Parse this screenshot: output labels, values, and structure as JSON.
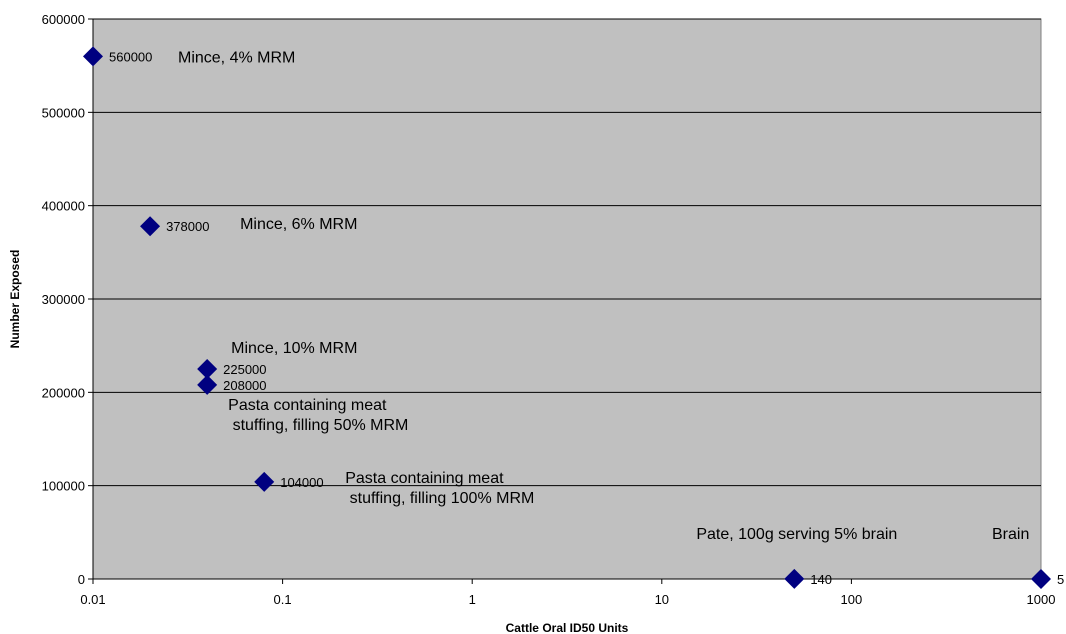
{
  "chart_data": {
    "type": "scatter",
    "title": "",
    "xlabel": "Cattle Oral ID50 Units",
    "ylabel": "Number Exposed",
    "x_scale": "log",
    "xlim": [
      0.01,
      1000
    ],
    "ylim": [
      0,
      600000
    ],
    "x_ticks": [
      "0.01",
      "0.1",
      "1",
      "10",
      "100",
      "1000"
    ],
    "y_ticks": [
      "0",
      "100000",
      "200000",
      "300000",
      "400000",
      "500000",
      "600000"
    ],
    "grid": "horizontal",
    "legend": "none",
    "colors": {
      "plot_bg": "#c0c0c0",
      "marker": "#000080",
      "grid": "#000000"
    },
    "points": [
      {
        "x": 0.01,
        "y": 560000,
        "label": "560000"
      },
      {
        "x": 0.02,
        "y": 378000,
        "label": "378000"
      },
      {
        "x": 0.04,
        "y": 225000,
        "label": "225000"
      },
      {
        "x": 0.04,
        "y": 208000,
        "label": "208000"
      },
      {
        "x": 0.08,
        "y": 104000,
        "label": "104000"
      },
      {
        "x": 50,
        "y": 140,
        "label": "140"
      },
      {
        "x": 1000,
        "y": 5,
        "label": "5"
      }
    ],
    "annotations": [
      {
        "lines": [
          "Mince, 4% MRM"
        ]
      },
      {
        "lines": [
          "Mince, 6% MRM"
        ]
      },
      {
        "lines": [
          "Mince, 10% MRM"
        ]
      },
      {
        "lines": [
          "Pasta containing meat",
          " stuffing, filling 50% MRM"
        ]
      },
      {
        "lines": [
          "Pasta containing meat",
          " stuffing, filling 100% MRM"
        ]
      },
      {
        "lines": [
          "Pate, 100g serving 5% brain"
        ]
      },
      {
        "lines": [
          "Brain"
        ]
      }
    ]
  }
}
